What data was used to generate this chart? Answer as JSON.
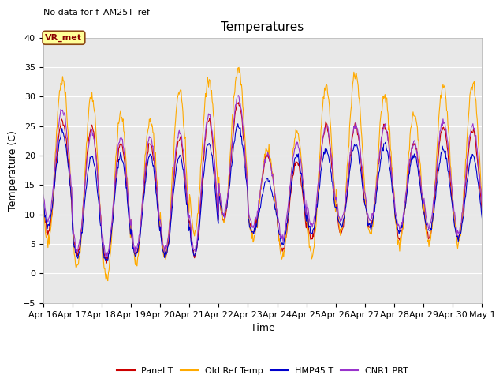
{
  "title": "Temperatures",
  "xlabel": "Time",
  "ylabel": "Temperature (C)",
  "annotation_text": "No data for f_AM25T_ref",
  "legend_label_text": "VR_met",
  "ylim": [
    -5,
    40
  ],
  "x_tick_labels": [
    "Apr 16",
    "Apr 17",
    "Apr 18",
    "Apr 19",
    "Apr 20",
    "Apr 21",
    "Apr 22",
    "Apr 23",
    "Apr 24",
    "Apr 25",
    "Apr 26",
    "Apr 27",
    "Apr 28",
    "Apr 29",
    "Apr 30",
    "May 1"
  ],
  "series_colors": {
    "panel_t": "#cc0000",
    "old_ref_temp": "#ffaa00",
    "hmp45_t": "#0000cc",
    "cnr1_prt": "#9933cc"
  },
  "legend_labels": [
    "Panel T",
    "Old Ref Temp",
    "HMP45 T",
    "CNR1 PRT"
  ],
  "background_color": "#e8e8e8",
  "title_fontsize": 11,
  "axis_fontsize": 9,
  "tick_fontsize": 8,
  "day_mins_panel": [
    7,
    3,
    2,
    3,
    3,
    3,
    9,
    7,
    4,
    6,
    7,
    8,
    6,
    6,
    6
  ],
  "day_maxs_panel": [
    26,
    25,
    22,
    22,
    23,
    26,
    29,
    20,
    19,
    25,
    25,
    25,
    22,
    25,
    24
  ],
  "day_mins_old": [
    5,
    1,
    -1,
    2,
    3,
    7,
    9,
    6,
    3,
    3,
    7,
    7,
    5,
    5,
    5
  ],
  "day_maxs_old": [
    33,
    30,
    27,
    26,
    31,
    33,
    35,
    21,
    24,
    32,
    34,
    30,
    27,
    32,
    32
  ],
  "day_mins_hmp45": [
    8,
    3,
    2,
    3,
    3,
    3,
    10,
    7,
    5,
    7,
    8,
    8,
    7,
    7,
    6
  ],
  "day_maxs_hmp45": [
    24,
    20,
    20,
    20,
    20,
    22,
    25,
    16,
    20,
    21,
    22,
    22,
    20,
    21,
    20
  ],
  "day_mins_cnr1": [
    9,
    4,
    3,
    4,
    4,
    4,
    10,
    8,
    6,
    8,
    9,
    9,
    8,
    8,
    7
  ],
  "day_maxs_cnr1": [
    28,
    24,
    23,
    23,
    24,
    27,
    30,
    20,
    22,
    25,
    25,
    25,
    22,
    26,
    25
  ]
}
